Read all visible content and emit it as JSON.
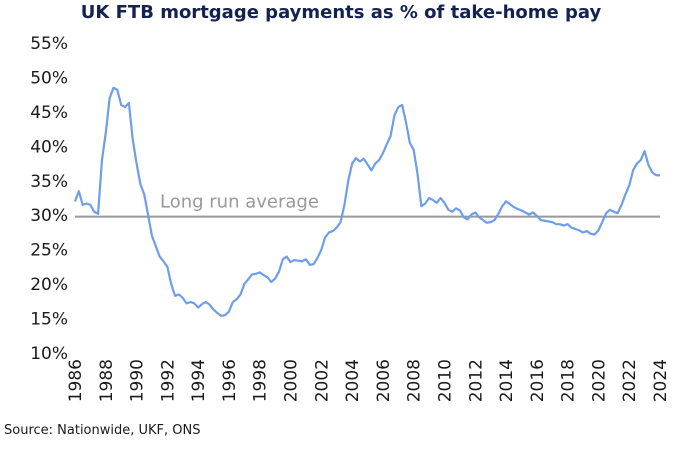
{
  "chart_data": {
    "type": "line",
    "title": "UK FTB mortgage payments as % of take-home pay",
    "source": "Source: Nationwide, UKF, ONS",
    "color": "#6f9ee8",
    "x": [
      1986,
      1986.25,
      1986.5,
      1986.75,
      1987,
      1987.25,
      1987.5,
      1987.75,
      1988,
      1988.25,
      1988.5,
      1988.75,
      1989,
      1989.25,
      1989.5,
      1989.75,
      1990,
      1990.25,
      1990.5,
      1990.75,
      1991,
      1991.25,
      1991.5,
      1991.75,
      1992,
      1992.25,
      1992.5,
      1992.75,
      1993,
      1993.25,
      1993.5,
      1993.75,
      1994,
      1994.25,
      1994.5,
      1994.75,
      1995,
      1995.25,
      1995.5,
      1995.75,
      1996,
      1996.25,
      1996.5,
      1996.75,
      1997,
      1997.25,
      1997.5,
      1997.75,
      1998,
      1998.25,
      1998.5,
      1998.75,
      1999,
      1999.25,
      1999.5,
      1999.75,
      2000,
      2000.25,
      2000.5,
      2000.75,
      2001,
      2001.25,
      2001.5,
      2001.75,
      2002,
      2002.25,
      2002.5,
      2002.75,
      2003,
      2003.25,
      2003.5,
      2003.75,
      2004,
      2004.25,
      2004.5,
      2004.75,
      2005,
      2005.25,
      2005.5,
      2005.75,
      2006,
      2006.25,
      2006.5,
      2006.75,
      2007,
      2007.25,
      2007.5,
      2007.75,
      2008,
      2008.25,
      2008.5,
      2008.75,
      2009,
      2009.25,
      2009.5,
      2009.75,
      2010,
      2010.25,
      2010.5,
      2010.75,
      2011,
      2011.25,
      2011.5,
      2011.75,
      2012,
      2012.25,
      2012.5,
      2012.75,
      2013,
      2013.25,
      2013.5,
      2013.75,
      2014,
      2014.25,
      2014.5,
      2014.75,
      2015,
      2015.25,
      2015.5,
      2015.75,
      2016,
      2016.25,
      2016.5,
      2016.75,
      2017,
      2017.25,
      2017.5,
      2017.75,
      2018,
      2018.25,
      2018.5,
      2018.75,
      2019,
      2019.25,
      2019.5,
      2019.75,
      2020,
      2020.25,
      2020.5,
      2020.75,
      2021,
      2021.25,
      2021.5,
      2021.75,
      2022,
      2022.25,
      2022.5,
      2022.75,
      2023,
      2023.25,
      2023.5,
      2023.75,
      2024
    ],
    "values": [
      32,
      33.5,
      31.5,
      31.7,
      31.5,
      30.5,
      30.2,
      38,
      42,
      47,
      48.5,
      48.2,
      46,
      45.7,
      46.3,
      41,
      37.5,
      34.5,
      33,
      30,
      27,
      25.5,
      24,
      23.3,
      22.5,
      20,
      18.3,
      18.5,
      18,
      17.2,
      17.4,
      17.2,
      16.6,
      17.1,
      17.4,
      17,
      16.3,
      15.8,
      15.4,
      15.5,
      16,
      17.4,
      17.8,
      18.5,
      20,
      20.7,
      21.4,
      21.5,
      21.7,
      21.3,
      21,
      20.3,
      20.8,
      21.8,
      23.6,
      24,
      23.2,
      23.5,
      23.4,
      23.3,
      23.6,
      22.8,
      22.9,
      23.8,
      25,
      26.8,
      27.5,
      27.7,
      28.2,
      29,
      31.5,
      35,
      37.5,
      38.3,
      37.8,
      38.2,
      37.4,
      36.5,
      37.5,
      38,
      39,
      40.3,
      41.5,
      44.5,
      45.7,
      46,
      43.5,
      40.5,
      39.5,
      36,
      31.3,
      31.7,
      32.5,
      32.2,
      31.8,
      32.5,
      31.8,
      30.8,
      30.5,
      31,
      30.7,
      29.7,
      29.4,
      30.1,
      30.4,
      29.7,
      29.3,
      28.9,
      29,
      29.3,
      30.2,
      31.3,
      32,
      31.6,
      31.2,
      30.9,
      30.7,
      30.4,
      30.1,
      30.4,
      29.9,
      29.3,
      29.2,
      29.1,
      29,
      28.7,
      28.7,
      28.5,
      28.7,
      28.2,
      28,
      27.8,
      27.5,
      27.7,
      27.3,
      27.2,
      27.8,
      29,
      30.3,
      30.8,
      30.5,
      30.3,
      31.5,
      33,
      34.3,
      36.5,
      37.5,
      38,
      39.3,
      37.3,
      36.2,
      35.8,
      35.8
    ],
    "reference_line": {
      "value": 29.8,
      "label": "Long run average",
      "color": "#999999"
    },
    "xlim": [
      1986,
      2024
    ],
    "xticks": [
      1986,
      1988,
      1990,
      1992,
      1994,
      1996,
      1998,
      2000,
      2002,
      2004,
      2006,
      2008,
      2010,
      2012,
      2014,
      2016,
      2018,
      2020,
      2022,
      2024
    ],
    "ylim": [
      10,
      55
    ],
    "yticks": [
      {
        "value": 10,
        "label": "10%"
      },
      {
        "value": 15,
        "label": "15%"
      },
      {
        "value": 20,
        "label": "20%"
      },
      {
        "value": 25,
        "label": "25%"
      },
      {
        "value": 30,
        "label": "30%"
      },
      {
        "value": 35,
        "label": "35%"
      },
      {
        "value": 40,
        "label": "40%"
      },
      {
        "value": 45,
        "label": "45%"
      },
      {
        "value": 50,
        "label": "50%"
      },
      {
        "value": 55,
        "label": "55%"
      }
    ]
  }
}
